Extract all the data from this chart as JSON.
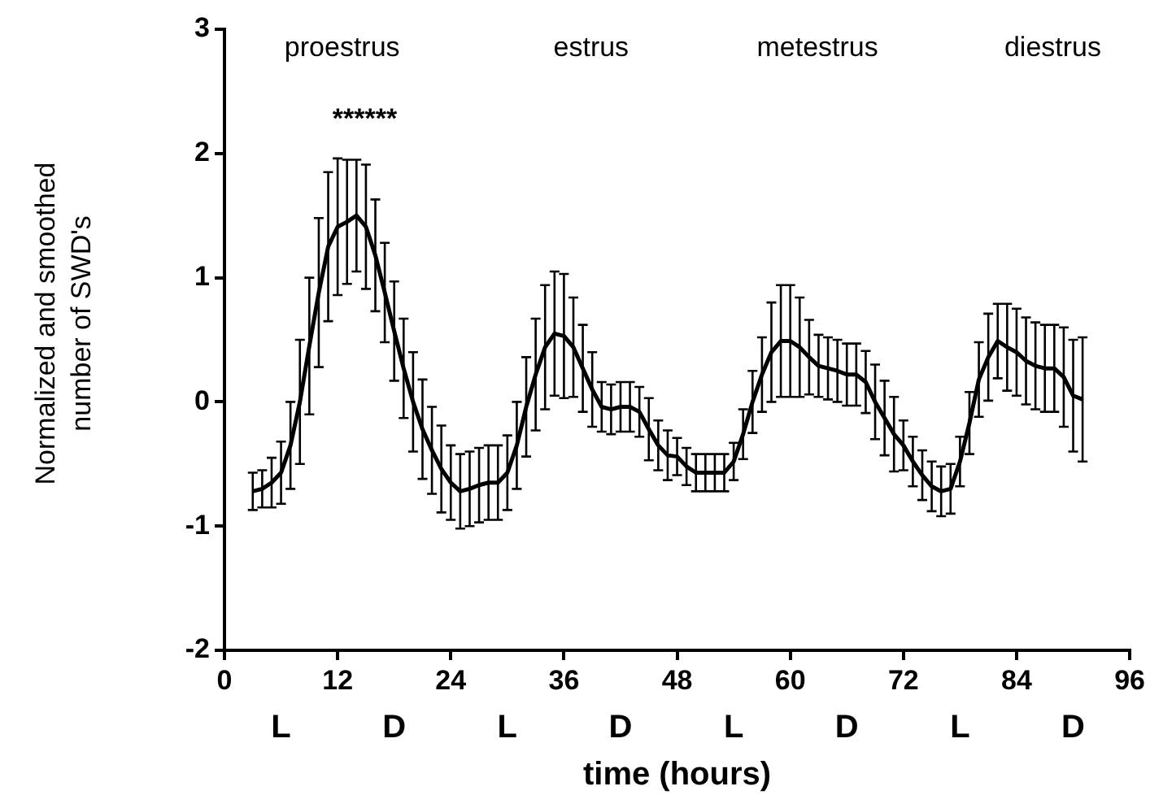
{
  "chart_data": {
    "type": "line",
    "xlabel": "time (hours)",
    "ylabel": "Normalized and smoothed\nnumber of SWD's",
    "x": [
      3,
      4,
      5,
      6,
      7,
      8,
      9,
      10,
      11,
      12,
      13,
      14,
      15,
      16,
      17,
      18,
      19,
      20,
      21,
      22,
      23,
      24,
      25,
      26,
      27,
      28,
      29,
      30,
      31,
      32,
      33,
      34,
      35,
      36,
      37,
      38,
      39,
      40,
      41,
      42,
      43,
      44,
      45,
      46,
      47,
      48,
      49,
      50,
      51,
      52,
      53,
      54,
      55,
      56,
      57,
      58,
      59,
      60,
      61,
      62,
      63,
      64,
      65,
      66,
      67,
      68,
      69,
      70,
      71,
      72,
      73,
      74,
      75,
      76,
      77,
      78,
      79,
      80,
      81,
      82,
      83,
      84,
      85,
      86,
      87,
      88,
      89,
      90,
      91
    ],
    "series": [
      {
        "color": "#000000",
        "values": [
          -0.72,
          -0.7,
          -0.65,
          -0.57,
          -0.35,
          0,
          0.45,
          0.88,
          1.25,
          1.41,
          1.45,
          1.5,
          1.41,
          1.18,
          0.88,
          0.57,
          0.27,
          0,
          -0.22,
          -0.39,
          -0.54,
          -0.65,
          -0.72,
          -0.7,
          -0.67,
          -0.65,
          -0.65,
          -0.57,
          -0.35,
          -0.04,
          0.22,
          0.44,
          0.55,
          0.53,
          0.44,
          0.27,
          0.1,
          -0.04,
          -0.06,
          -0.04,
          -0.04,
          -0.08,
          -0.22,
          -0.35,
          -0.43,
          -0.44,
          -0.52,
          -0.57,
          -0.57,
          -0.57,
          -0.57,
          -0.48,
          -0.26,
          0,
          0.22,
          0.4,
          0.49,
          0.49,
          0.44,
          0.36,
          0.29,
          0.27,
          0.25,
          0.22,
          0.22,
          0.16,
          0,
          -0.13,
          -0.26,
          -0.35,
          -0.48,
          -0.59,
          -0.68,
          -0.72,
          -0.7,
          -0.48,
          -0.17,
          0.18,
          0.36,
          0.49,
          0.44,
          0.4,
          0.33,
          0.29,
          0.27,
          0.27,
          0.2,
          0.05,
          0.02
        ],
        "errors": [
          0.15,
          0.15,
          0.2,
          0.25,
          0.35,
          0.5,
          0.55,
          0.6,
          0.6,
          0.55,
          0.5,
          0.45,
          0.5,
          0.45,
          0.4,
          0.4,
          0.4,
          0.4,
          0.4,
          0.35,
          0.35,
          0.3,
          0.3,
          0.3,
          0.3,
          0.3,
          0.3,
          0.3,
          0.35,
          0.4,
          0.45,
          0.5,
          0.5,
          0.5,
          0.4,
          0.35,
          0.3,
          0.2,
          0.2,
          0.2,
          0.2,
          0.2,
          0.25,
          0.2,
          0.2,
          0.15,
          0.15,
          0.15,
          0.15,
          0.15,
          0.15,
          0.15,
          0.2,
          0.25,
          0.3,
          0.4,
          0.45,
          0.45,
          0.4,
          0.3,
          0.25,
          0.25,
          0.25,
          0.25,
          0.25,
          0.25,
          0.3,
          0.3,
          0.3,
          0.2,
          0.2,
          0.2,
          0.2,
          0.2,
          0.2,
          0.2,
          0.25,
          0.3,
          0.35,
          0.3,
          0.35,
          0.35,
          0.35,
          0.35,
          0.35,
          0.35,
          0.4,
          0.45,
          0.5
        ]
      }
    ],
    "xlim": [
      0,
      96
    ],
    "xticks": [
      0,
      12,
      24,
      36,
      48,
      60,
      72,
      84,
      96
    ],
    "ylim": [
      -2,
      3
    ],
    "yticks": [
      -2,
      -1,
      0,
      1,
      2,
      3
    ],
    "grid": false,
    "legend": false,
    "marker": "none",
    "line_style": "solid",
    "annotations": [
      "proestrus",
      "estrus",
      "metestrus",
      "diestrus",
      "******",
      "L",
      "D",
      "L",
      "D",
      "L",
      "D",
      "L",
      "D"
    ]
  }
}
